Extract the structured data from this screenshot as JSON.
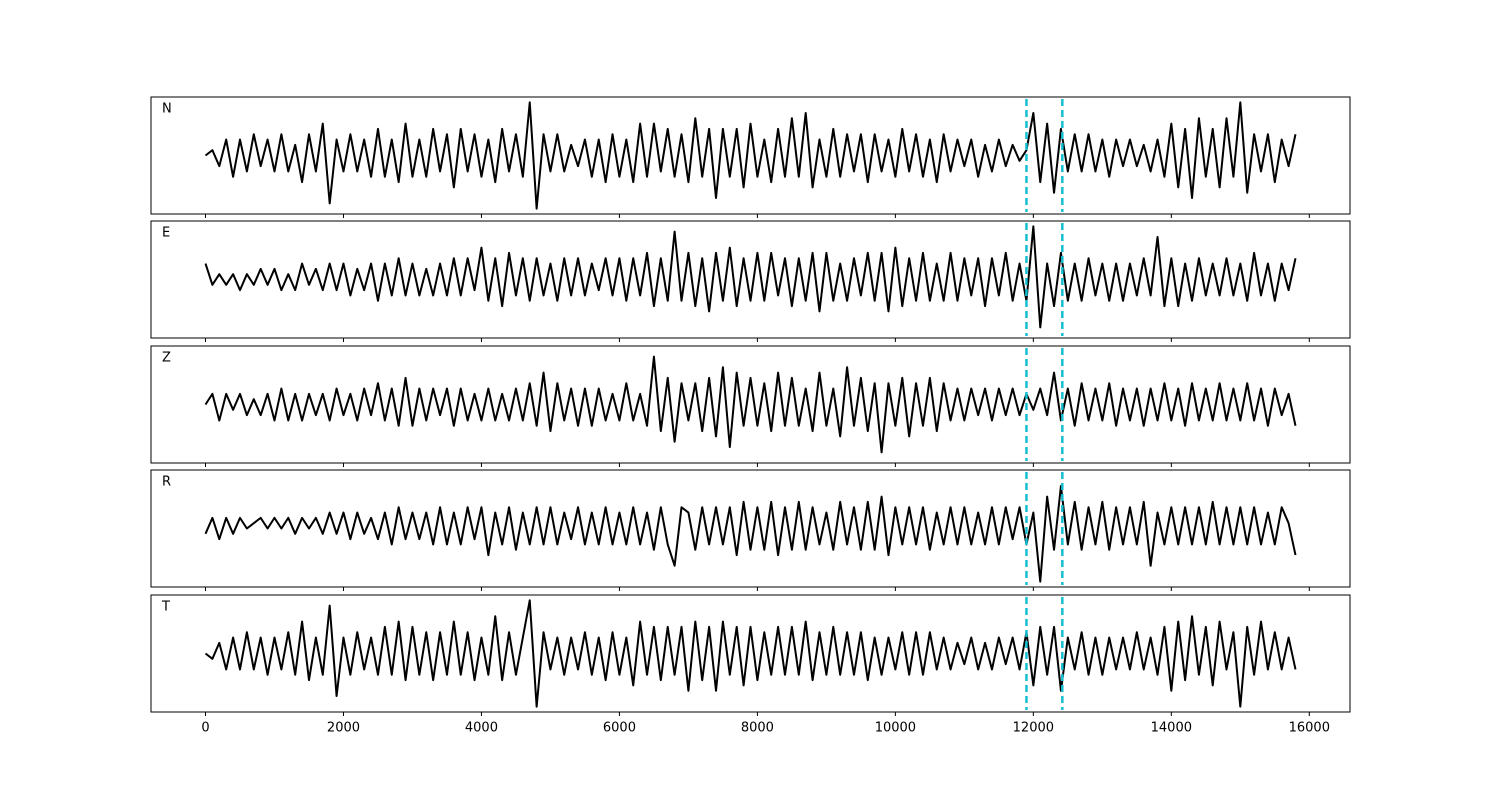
{
  "chart_data": {
    "type": "line",
    "layout": "stacked",
    "xlim": [
      -790,
      16590
    ],
    "ylim": [
      -1.1,
      1.1
    ],
    "xticks": [
      0,
      2000,
      4000,
      6000,
      8000,
      10000,
      12000,
      14000,
      16000
    ],
    "vlines": [
      11900,
      12420
    ],
    "vline_color": "#17becf",
    "vline_style": "dashed",
    "x": [
      0,
      100,
      200,
      300,
      400,
      500,
      600,
      700,
      800,
      900,
      1000,
      1100,
      1200,
      1300,
      1400,
      1500,
      1600,
      1700,
      1800,
      1900,
      2000,
      2100,
      2200,
      2300,
      2400,
      2500,
      2600,
      2700,
      2800,
      2900,
      3000,
      3100,
      3200,
      3300,
      3400,
      3500,
      3600,
      3700,
      3800,
      3900,
      4000,
      4100,
      4200,
      4300,
      4400,
      4500,
      4600,
      4700,
      4800,
      4900,
      5000,
      5100,
      5200,
      5300,
      5400,
      5500,
      5600,
      5700,
      5800,
      5900,
      6000,
      6100,
      6200,
      6300,
      6400,
      6500,
      6600,
      6700,
      6800,
      6900,
      7000,
      7100,
      7200,
      7300,
      7400,
      7500,
      7600,
      7700,
      7800,
      7900,
      8000,
      8100,
      8200,
      8300,
      8400,
      8500,
      8600,
      8700,
      8800,
      8900,
      9000,
      9100,
      9200,
      9300,
      9400,
      9500,
      9600,
      9700,
      9800,
      9900,
      10000,
      10100,
      10200,
      10300,
      10400,
      10500,
      10600,
      10700,
      10800,
      10900,
      11000,
      11100,
      11200,
      11300,
      11400,
      11500,
      11600,
      11700,
      11800,
      11900,
      12000,
      12100,
      12200,
      12300,
      12400,
      12500,
      12600,
      12700,
      12800,
      12900,
      13000,
      13100,
      13200,
      13300,
      13400,
      13500,
      13600,
      13700,
      13800,
      13900,
      14000,
      14100,
      14200,
      14300,
      14400,
      14500,
      14600,
      14700,
      14800,
      14900,
      15000,
      15100,
      15200,
      15300,
      15400,
      15500,
      15600,
      15700,
      15800
    ],
    "series": [
      {
        "name": "N",
        "color": "#000000",
        "values": [
          0,
          0.1,
          -0.2,
          0.3,
          -0.4,
          0.3,
          -0.3,
          0.4,
          -0.2,
          0.3,
          -0.3,
          0.4,
          -0.3,
          0.2,
          -0.5,
          0.4,
          -0.3,
          0.6,
          -0.9,
          0.3,
          -0.3,
          0.4,
          -0.3,
          0.3,
          -0.4,
          0.5,
          -0.4,
          0.3,
          -0.5,
          0.6,
          -0.4,
          0.3,
          -0.4,
          0.5,
          -0.3,
          0.4,
          -0.6,
          0.5,
          -0.3,
          0.4,
          -0.4,
          0.3,
          -0.5,
          0.5,
          -0.3,
          0.4,
          -0.4,
          1.0,
          -1.0,
          0.4,
          -0.3,
          0.4,
          -0.3,
          0.2,
          -0.2,
          0.3,
          -0.4,
          0.3,
          -0.5,
          0.4,
          -0.4,
          0.3,
          -0.5,
          0.6,
          -0.4,
          0.6,
          -0.3,
          0.5,
          -0.4,
          0.4,
          -0.5,
          0.7,
          -0.4,
          0.5,
          -0.8,
          0.5,
          -0.4,
          0.5,
          -0.6,
          0.6,
          -0.4,
          0.3,
          -0.5,
          0.5,
          -0.4,
          0.7,
          -0.4,
          0.8,
          -0.6,
          0.3,
          -0.4,
          0.5,
          -0.4,
          0.4,
          -0.3,
          0.4,
          -0.5,
          0.4,
          -0.3,
          0.3,
          -0.4,
          0.5,
          -0.3,
          0.4,
          -0.4,
          0.3,
          -0.5,
          0.4,
          -0.3,
          0.3,
          -0.2,
          0.3,
          -0.4,
          0.2,
          -0.3,
          0.3,
          -0.2,
          0.2,
          -0.1,
          0.1,
          0.8,
          -0.5,
          0.6,
          -0.7,
          0.5,
          -0.3,
          0.4,
          -0.3,
          0.4,
          -0.3,
          0.3,
          -0.4,
          0.3,
          -0.2,
          0.3,
          -0.2,
          0.2,
          -0.3,
          0.3,
          -0.4,
          0.6,
          -0.6,
          0.5,
          -0.8,
          0.7,
          -0.4,
          0.5,
          -0.6,
          0.7,
          -0.4,
          1.0,
          -0.7,
          0.4,
          -0.3,
          0.4,
          -0.5,
          0.3,
          -0.2,
          0.4
        ]
      },
      {
        "name": "E",
        "color": "#000000",
        "values": [
          0.3,
          -0.1,
          0.1,
          -0.1,
          0.1,
          -0.2,
          0.1,
          -0.1,
          0.2,
          -0.1,
          0.2,
          -0.2,
          0.1,
          -0.2,
          0.3,
          -0.1,
          0.2,
          -0.2,
          0.3,
          -0.2,
          0.3,
          -0.3,
          0.2,
          -0.2,
          0.3,
          -0.4,
          0.3,
          -0.3,
          0.4,
          -0.3,
          0.3,
          -0.3,
          0.2,
          -0.3,
          0.3,
          -0.3,
          0.4,
          -0.3,
          0.4,
          -0.2,
          0.6,
          -0.4,
          0.4,
          -0.5,
          0.5,
          -0.3,
          0.4,
          -0.4,
          0.4,
          -0.3,
          0.3,
          -0.4,
          0.4,
          -0.3,
          0.4,
          -0.3,
          0.3,
          -0.2,
          0.4,
          -0.3,
          0.4,
          -0.4,
          0.4,
          -0.3,
          0.5,
          -0.5,
          0.4,
          -0.4,
          0.9,
          -0.4,
          0.5,
          -0.5,
          0.4,
          -0.6,
          0.5,
          -0.4,
          0.6,
          -0.5,
          0.4,
          -0.4,
          0.5,
          -0.4,
          0.5,
          -0.3,
          0.4,
          -0.5,
          0.4,
          -0.4,
          0.5,
          -0.6,
          0.5,
          -0.4,
          0.3,
          -0.4,
          0.4,
          -0.3,
          0.5,
          -0.4,
          0.5,
          -0.6,
          0.6,
          -0.5,
          0.4,
          -0.4,
          0.5,
          -0.4,
          0.3,
          -0.4,
          0.5,
          -0.4,
          0.4,
          -0.3,
          0.4,
          -0.5,
          0.4,
          -0.3,
          0.5,
          -0.4,
          0.3,
          -0.4,
          1.0,
          -0.9,
          0.3,
          -0.5,
          0.5,
          -0.4,
          0.3,
          -0.4,
          0.4,
          -0.3,
          0.3,
          -0.4,
          0.3,
          -0.4,
          0.3,
          -0.3,
          0.4,
          -0.3,
          0.8,
          -0.5,
          0.4,
          -0.5,
          0.3,
          -0.4,
          0.4,
          -0.3,
          0.3,
          -0.3,
          0.4,
          -0.3,
          0.3,
          -0.4,
          0.5,
          -0.3,
          0.3,
          -0.4,
          0.3,
          -0.2,
          0.4
        ]
      },
      {
        "name": "Z",
        "color": "#000000",
        "values": [
          0.0,
          0.2,
          -0.3,
          0.2,
          -0.1,
          0.2,
          -0.2,
          0.1,
          -0.2,
          0.2,
          -0.3,
          0.3,
          -0.3,
          0.2,
          -0.3,
          0.2,
          -0.2,
          0.2,
          -0.3,
          0.3,
          -0.2,
          0.2,
          -0.3,
          0.3,
          -0.2,
          0.4,
          -0.3,
          0.3,
          -0.4,
          0.5,
          -0.4,
          0.3,
          -0.3,
          0.3,
          -0.2,
          0.3,
          -0.4,
          0.3,
          -0.3,
          0.2,
          -0.3,
          0.3,
          -0.3,
          0.2,
          -0.3,
          0.3,
          -0.3,
          0.4,
          -0.4,
          0.6,
          -0.5,
          0.4,
          -0.3,
          0.3,
          -0.4,
          0.3,
          -0.4,
          0.3,
          -0.3,
          0.2,
          -0.3,
          0.4,
          -0.3,
          0.2,
          -0.4,
          0.9,
          -0.5,
          0.5,
          -0.7,
          0.4,
          -0.3,
          0.4,
          -0.5,
          0.5,
          -0.6,
          0.7,
          -0.8,
          0.6,
          -0.4,
          0.5,
          -0.4,
          0.4,
          -0.5,
          0.6,
          -0.4,
          0.5,
          -0.4,
          0.3,
          -0.5,
          0.6,
          -0.4,
          0.3,
          -0.6,
          0.7,
          -0.4,
          0.5,
          -0.5,
          0.4,
          -0.9,
          0.4,
          -0.4,
          0.5,
          -0.6,
          0.4,
          -0.4,
          0.5,
          -0.5,
          0.4,
          -0.3,
          0.3,
          -0.3,
          0.3,
          -0.2,
          0.3,
          -0.3,
          0.3,
          -0.2,
          0.3,
          -0.2,
          0.2,
          -0.1,
          0.3,
          -0.2,
          0.6,
          -0.3,
          0.3,
          -0.4,
          0.4,
          -0.3,
          0.3,
          -0.3,
          0.4,
          -0.4,
          0.3,
          -0.3,
          0.3,
          -0.4,
          0.3,
          -0.3,
          0.4,
          -0.3,
          0.3,
          -0.4,
          0.4,
          -0.3,
          0.3,
          -0.3,
          0.4,
          -0.3,
          0.3,
          -0.3,
          0.4,
          -0.3,
          0.3,
          -0.4,
          0.3,
          -0.2,
          0.2,
          -0.4
        ]
      },
      {
        "name": "R",
        "color": "#000000",
        "values": [
          -0.1,
          0.2,
          -0.2,
          0.2,
          -0.1,
          0.2,
          0.0,
          0.1,
          0.2,
          0.0,
          0.2,
          0.0,
          0.2,
          -0.1,
          0.2,
          0.0,
          0.2,
          -0.1,
          0.3,
          -0.1,
          0.3,
          -0.2,
          0.3,
          -0.1,
          0.2,
          -0.2,
          0.3,
          -0.3,
          0.4,
          -0.2,
          0.3,
          -0.2,
          0.3,
          -0.3,
          0.4,
          -0.3,
          0.3,
          -0.3,
          0.4,
          -0.2,
          0.4,
          -0.5,
          0.3,
          -0.3,
          0.4,
          -0.4,
          0.3,
          -0.3,
          0.4,
          -0.3,
          0.4,
          -0.3,
          0.3,
          -0.2,
          0.4,
          -0.3,
          0.3,
          -0.3,
          0.4,
          -0.3,
          0.3,
          -0.3,
          0.4,
          -0.3,
          0.3,
          -0.4,
          0.4,
          -0.3,
          -0.7,
          0.4,
          0.3,
          -0.4,
          0.4,
          -0.3,
          0.4,
          -0.3,
          0.4,
          -0.5,
          0.5,
          -0.4,
          0.4,
          -0.4,
          0.5,
          -0.5,
          0.4,
          -0.4,
          0.5,
          -0.4,
          0.4,
          -0.3,
          0.3,
          -0.4,
          0.5,
          -0.3,
          0.4,
          -0.4,
          0.5,
          -0.4,
          0.6,
          -0.5,
          0.4,
          -0.3,
          0.4,
          -0.3,
          0.4,
          -0.4,
          0.3,
          -0.3,
          0.4,
          -0.3,
          0.4,
          -0.3,
          0.3,
          -0.3,
          0.4,
          -0.3,
          0.4,
          -0.2,
          0.4,
          -0.3,
          0.3,
          -1.0,
          0.6,
          -0.4,
          0.8,
          -0.3,
          0.5,
          -0.4,
          0.4,
          -0.3,
          0.5,
          -0.4,
          0.4,
          -0.3,
          0.4,
          -0.3,
          0.5,
          -0.7,
          0.3,
          -0.3,
          0.4,
          -0.3,
          0.4,
          -0.3,
          0.4,
          -0.3,
          0.5,
          -0.3,
          0.4,
          -0.3,
          0.4,
          -0.3,
          0.4,
          -0.3,
          0.3,
          -0.3,
          0.4,
          0.1,
          -0.5
        ]
      },
      {
        "name": "T",
        "color": "#000000",
        "values": [
          0.0,
          -0.1,
          0.2,
          -0.3,
          0.3,
          -0.3,
          0.4,
          -0.3,
          0.3,
          -0.4,
          0.3,
          -0.3,
          0.4,
          -0.4,
          0.6,
          -0.5,
          0.3,
          -0.4,
          0.9,
          -0.8,
          0.3,
          -0.4,
          0.4,
          -0.3,
          0.3,
          -0.4,
          0.5,
          -0.4,
          0.6,
          -0.5,
          0.5,
          -0.4,
          0.4,
          -0.5,
          0.4,
          -0.4,
          0.6,
          -0.4,
          0.4,
          -0.5,
          0.3,
          -0.4,
          0.7,
          -0.5,
          0.4,
          -0.4,
          0.3,
          1.0,
          -1.0,
          0.4,
          -0.3,
          0.3,
          -0.4,
          0.3,
          -0.3,
          0.4,
          -0.4,
          0.3,
          -0.5,
          0.4,
          -0.4,
          0.3,
          -0.6,
          0.6,
          -0.4,
          0.5,
          -0.5,
          0.5,
          -0.4,
          0.5,
          -0.7,
          0.6,
          -0.5,
          0.5,
          -0.7,
          0.6,
          -0.4,
          0.5,
          -0.6,
          0.5,
          -0.5,
          0.4,
          -0.4,
          0.5,
          -0.4,
          0.5,
          -0.4,
          0.6,
          -0.5,
          0.4,
          -0.4,
          0.5,
          -0.4,
          0.4,
          -0.4,
          0.4,
          -0.5,
          0.3,
          -0.4,
          0.3,
          -0.3,
          0.4,
          -0.4,
          0.4,
          -0.4,
          0.4,
          -0.3,
          0.3,
          -0.3,
          0.2,
          -0.2,
          0.3,
          -0.3,
          0.2,
          -0.3,
          0.3,
          -0.2,
          0.3,
          -0.3,
          0.4,
          -0.6,
          0.5,
          -0.4,
          0.5,
          -0.7,
          0.3,
          -0.3,
          0.4,
          -0.4,
          0.3,
          -0.4,
          0.3,
          -0.3,
          0.3,
          -0.3,
          0.4,
          -0.3,
          0.3,
          -0.4,
          0.5,
          -0.7,
          0.6,
          -0.5,
          0.7,
          -0.4,
          0.5,
          -0.6,
          0.6,
          -0.3,
          0.4,
          -1.0,
          0.5,
          -0.4,
          0.6,
          -0.3,
          0.4,
          -0.3,
          0.3,
          -0.3
        ]
      }
    ]
  }
}
